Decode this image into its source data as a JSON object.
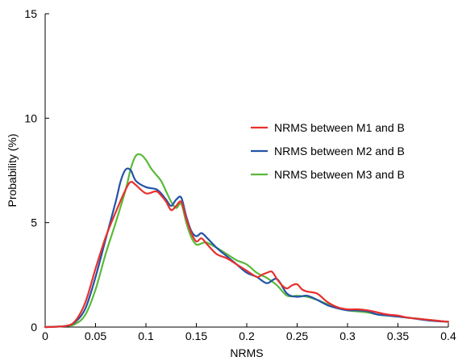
{
  "chart_data": {
    "type": "line",
    "title": "",
    "xlabel": "NRMS",
    "ylabel": "Probability (%)",
    "xlim": [
      0,
      0.4
    ],
    "ylim": [
      0,
      15
    ],
    "xticks": [
      "0",
      "0.05",
      "0.1",
      "0.15",
      "0.2",
      "0.25",
      "0.3",
      "0.35",
      "0.4"
    ],
    "xtick_values": [
      0,
      0.05,
      0.1,
      0.15,
      0.2,
      0.25,
      0.3,
      0.35,
      0.4
    ],
    "yticks": [
      "0",
      "5",
      "10",
      "15"
    ],
    "ytick_values": [
      0,
      5,
      10,
      15
    ],
    "grid": false,
    "legend_position": "right",
    "series": [
      {
        "name": "NRMS between M1 and B",
        "color": "#e8302e",
        "x": [
          0,
          0.02,
          0.03,
          0.04,
          0.05,
          0.06,
          0.07,
          0.08,
          0.085,
          0.09,
          0.1,
          0.11,
          0.115,
          0.12,
          0.125,
          0.13,
          0.135,
          0.14,
          0.145,
          0.15,
          0.155,
          0.16,
          0.17,
          0.18,
          0.19,
          0.2,
          0.21,
          0.215,
          0.22,
          0.225,
          0.23,
          0.235,
          0.24,
          0.245,
          0.25,
          0.255,
          0.26,
          0.27,
          0.28,
          0.29,
          0.3,
          0.31,
          0.32,
          0.33,
          0.34,
          0.35,
          0.36,
          0.37,
          0.38,
          0.39,
          0.4
        ],
        "y": [
          0,
          0.05,
          0.3,
          1.2,
          2.8,
          4.3,
          5.5,
          6.6,
          6.95,
          6.8,
          6.4,
          6.5,
          6.3,
          6.0,
          5.6,
          5.8,
          6.0,
          5.2,
          4.5,
          4.1,
          4.25,
          4.0,
          3.5,
          3.3,
          3.0,
          2.7,
          2.4,
          2.5,
          2.6,
          2.65,
          2.3,
          2.0,
          1.85,
          2.0,
          2.05,
          1.8,
          1.7,
          1.6,
          1.2,
          0.95,
          0.85,
          0.85,
          0.8,
          0.7,
          0.6,
          0.55,
          0.45,
          0.4,
          0.35,
          0.3,
          0.25
        ]
      },
      {
        "name": "NRMS between M2 and B",
        "color": "#2353a6",
        "x": [
          0,
          0.02,
          0.03,
          0.04,
          0.05,
          0.06,
          0.07,
          0.075,
          0.08,
          0.085,
          0.09,
          0.1,
          0.11,
          0.115,
          0.12,
          0.125,
          0.13,
          0.135,
          0.14,
          0.145,
          0.15,
          0.155,
          0.16,
          0.17,
          0.18,
          0.19,
          0.2,
          0.21,
          0.22,
          0.23,
          0.24,
          0.25,
          0.26,
          0.27,
          0.28,
          0.29,
          0.3,
          0.31,
          0.32,
          0.33,
          0.34,
          0.35,
          0.36,
          0.37,
          0.38,
          0.39,
          0.4
        ],
        "y": [
          0,
          0.05,
          0.25,
          0.9,
          2.4,
          4.2,
          6.0,
          7.0,
          7.55,
          7.5,
          7.0,
          6.7,
          6.6,
          6.4,
          6.1,
          5.8,
          6.1,
          6.2,
          5.3,
          4.6,
          4.35,
          4.5,
          4.3,
          3.8,
          3.4,
          3.0,
          2.6,
          2.4,
          2.1,
          2.3,
          1.6,
          1.45,
          1.5,
          1.3,
          1.05,
          0.9,
          0.8,
          0.8,
          0.75,
          0.6,
          0.55,
          0.5,
          0.45,
          0.38,
          0.32,
          0.28,
          0.25
        ]
      },
      {
        "name": "NRMS between M3 and B",
        "color": "#5ab93a",
        "x": [
          0,
          0.02,
          0.03,
          0.04,
          0.05,
          0.06,
          0.07,
          0.08,
          0.085,
          0.09,
          0.095,
          0.1,
          0.105,
          0.11,
          0.115,
          0.12,
          0.125,
          0.13,
          0.135,
          0.14,
          0.145,
          0.15,
          0.155,
          0.16,
          0.17,
          0.18,
          0.19,
          0.2,
          0.21,
          0.22,
          0.23,
          0.24,
          0.25,
          0.26,
          0.27,
          0.28,
          0.29,
          0.3,
          0.31,
          0.32,
          0.33,
          0.34,
          0.35,
          0.36,
          0.37,
          0.38,
          0.39,
          0.4
        ],
        "y": [
          0,
          0.05,
          0.15,
          0.6,
          1.8,
          3.5,
          5.0,
          6.6,
          7.6,
          8.2,
          8.25,
          8.0,
          7.6,
          7.3,
          7.0,
          6.5,
          6.0,
          5.7,
          5.9,
          5.0,
          4.3,
          3.95,
          4.0,
          4.05,
          3.8,
          3.5,
          3.2,
          3.0,
          2.6,
          2.35,
          2.0,
          1.5,
          1.5,
          1.45,
          1.3,
          1.1,
          0.95,
          0.8,
          0.75,
          0.7,
          0.6,
          0.55,
          0.5,
          0.45,
          0.4,
          0.35,
          0.3,
          0.25
        ]
      }
    ]
  }
}
